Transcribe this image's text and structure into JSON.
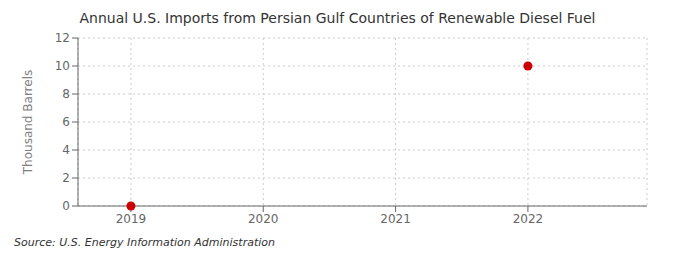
{
  "chart_data": {
    "type": "scatter",
    "title": "Annual U.S. Imports from Persian Gulf Countries of Renewable Diesel Fuel",
    "ylabel": "Thousand Barrels",
    "annotations": [
      "Source: U.S. Energy Information Administration"
    ],
    "x": [
      2019,
      2022
    ],
    "values": [
      0,
      10
    ],
    "color": "#cc0000",
    "marker": "circle",
    "xlim": [
      2018.6,
      2022.9
    ],
    "xticks": [
      2019,
      2020,
      2021,
      2022
    ],
    "ylim": [
      0,
      12
    ],
    "yticks": [
      0,
      2,
      4,
      6,
      8,
      10,
      12
    ],
    "grid": true
  }
}
